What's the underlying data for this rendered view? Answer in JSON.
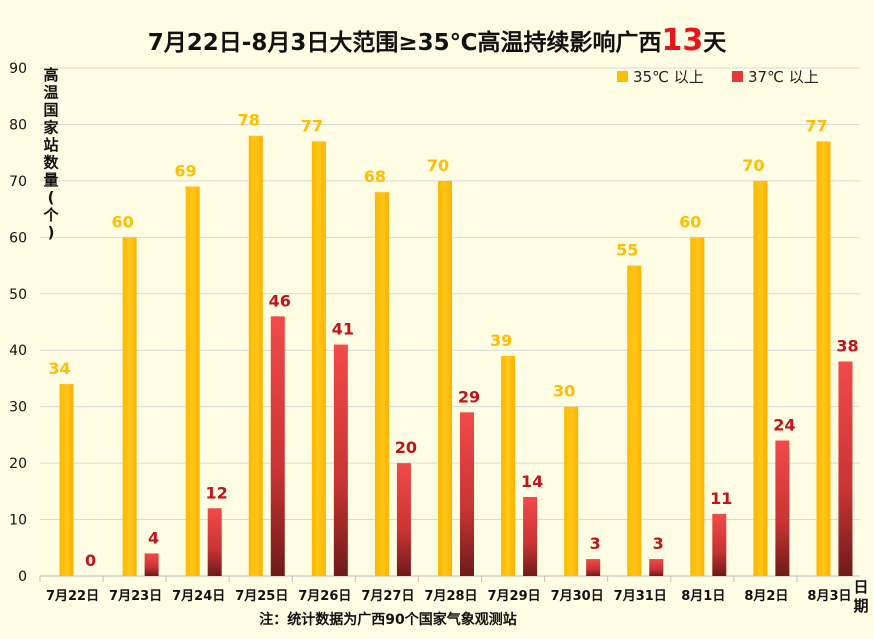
{
  "chart_data": {
    "type": "bar",
    "title": "7月22日-8月3日大范围≥35℃高温持续影响广西",
    "title_highlight": "13",
    "title_suffix": "天",
    "ylabel": "高温国家站数量（个）",
    "xlabel": "日期",
    "ylim": [
      0,
      90
    ],
    "yticks": [
      0,
      10,
      20,
      30,
      40,
      50,
      60,
      70,
      80,
      90
    ],
    "grid": true,
    "legend_position": "top-right",
    "categories": [
      "7月22日",
      "7月23日",
      "7月24日",
      "7月25日",
      "7月26日",
      "7月27日",
      "7月28日",
      "7月29日",
      "7月30日",
      "7月31日",
      "8月1日",
      "8月2日",
      "8月3日"
    ],
    "series": [
      {
        "name": "35℃ 以上",
        "color": "#FFBF00",
        "label_color": "#FFBF00",
        "values": [
          34,
          60,
          69,
          78,
          77,
          68,
          70,
          39,
          30,
          55,
          60,
          70,
          77
        ]
      },
      {
        "name": "37℃ 以上",
        "color": "#E8393A",
        "label_color": "#C0141A",
        "values": [
          0,
          4,
          12,
          46,
          41,
          20,
          29,
          14,
          3,
          3,
          11,
          24,
          38
        ]
      }
    ],
    "note": "注：统计数据为广西90个国家气象观测站"
  }
}
